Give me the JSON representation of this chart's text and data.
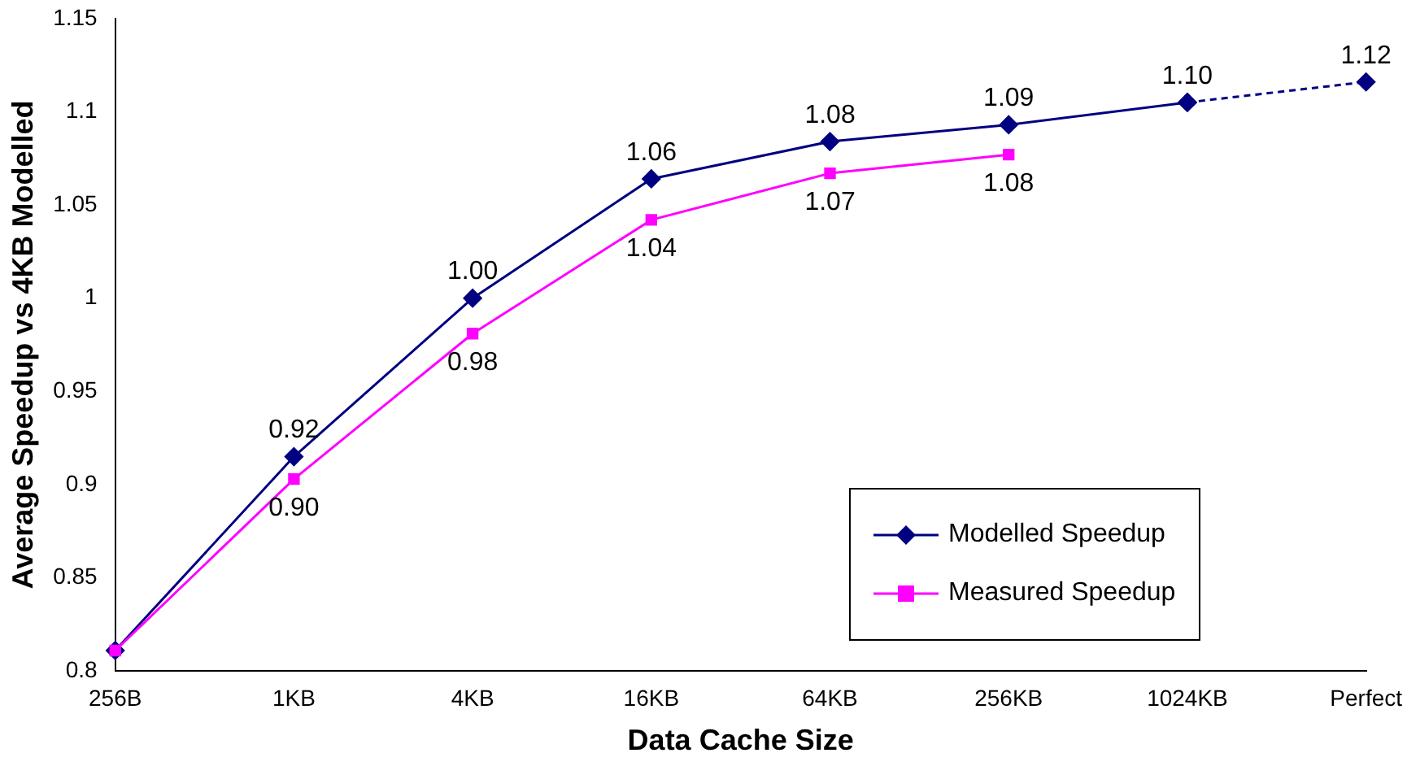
{
  "chart_data": {
    "type": "line",
    "xlabel": "Data Cache Size",
    "ylabel": "Average Speedup vs 4KB Modelled",
    "categories": [
      "256B",
      "1KB",
      "4KB",
      "16KB",
      "64KB",
      "256KB",
      "1024KB",
      "Perfect"
    ],
    "series": [
      {
        "name": "Modelled Speedup",
        "color": "#000080",
        "marker": "diamond",
        "line_style": "solid",
        "values": [
          0.811,
          0.915,
          1.0,
          1.064,
          1.084,
          1.093,
          1.105,
          null
        ],
        "value_labels": [
          null,
          "0.92",
          "1.00",
          "1.06",
          "1.08",
          "1.09",
          "1.10",
          null
        ]
      },
      {
        "name": "Measured Speedup",
        "color": "#ff00ff",
        "marker": "square",
        "line_style": "solid",
        "values": [
          0.811,
          0.903,
          0.981,
          1.042,
          1.067,
          1.077,
          null,
          null
        ],
        "value_labels": [
          null,
          "0.90",
          "0.98",
          "1.04",
          "1.07",
          "1.08",
          null,
          null
        ]
      },
      {
        "color": "#000080",
        "marker": "diamond",
        "line_style": "dashed",
        "values": [
          null,
          null,
          null,
          null,
          null,
          null,
          1.105,
          1.116
        ],
        "value_labels": [
          null,
          null,
          null,
          null,
          null,
          null,
          null,
          "1.12"
        ]
      }
    ],
    "ylim": [
      0.8,
      1.15
    ],
    "yticks": [
      0.8,
      0.85,
      0.9,
      0.95,
      1,
      1.05,
      1.1,
      1.15
    ],
    "grid": false,
    "legend": "bottom right"
  }
}
